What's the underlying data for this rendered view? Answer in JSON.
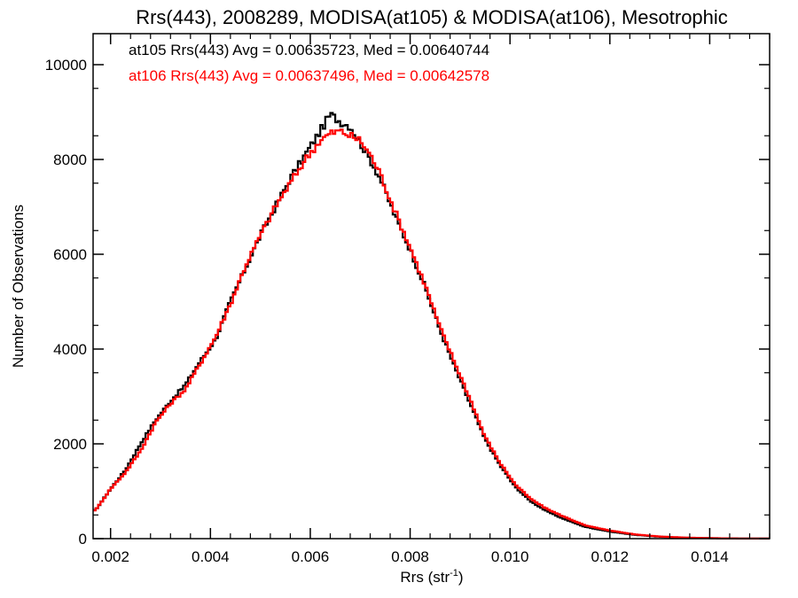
{
  "chart_data": {
    "type": "line",
    "title": "Rrs(443), 2008289, MODISA(at105) & MODISA(at106), Mesotrophic",
    "xlabel": "Rrs (str",
    "xlabel_sup": "-1",
    "xlabel_close": ")",
    "ylabel": "Number of Observations",
    "xlim": [
      0.00165,
      0.0152
    ],
    "ylim": [
      0,
      10000
    ],
    "grid": false,
    "xticks": [
      {
        "value": 0.002,
        "label": "0.002"
      },
      {
        "value": 0.004,
        "label": "0.004"
      },
      {
        "value": 0.006,
        "label": "0.006"
      },
      {
        "value": 0.008,
        "label": "0.008"
      },
      {
        "value": 0.01,
        "label": "0.010"
      },
      {
        "value": 0.012,
        "label": "0.012"
      },
      {
        "value": 0.014,
        "label": "0.014"
      }
    ],
    "yticks": [
      {
        "value": 0,
        "label": "0"
      },
      {
        "value": 2000,
        "label": "2000"
      },
      {
        "value": 4000,
        "label": "4000"
      },
      {
        "value": 6000,
        "label": "6000"
      },
      {
        "value": 8000,
        "label": "8000"
      },
      {
        "value": 10000,
        "label": "10000"
      }
    ],
    "annotations": [
      "at105 Rrs(443) Avg = 0.00635723, Med = 0.00640744",
      "at106 Rrs(443) Avg = 0.00637496, Med = 0.00642578"
    ],
    "x": [
      0.0017,
      0.002,
      0.0023,
      0.0026,
      0.0029,
      0.0032,
      0.0035,
      0.0038,
      0.0041,
      0.0044,
      0.0047,
      0.005,
      0.0053,
      0.0056,
      0.0059,
      0.0062,
      0.0064,
      0.0066,
      0.0068,
      0.007,
      0.0072,
      0.0074,
      0.0077,
      0.008,
      0.0083,
      0.0086,
      0.0089,
      0.0092,
      0.0095,
      0.0098,
      0.0101,
      0.0104,
      0.0107,
      0.011,
      0.0115,
      0.012,
      0.0125,
      0.013,
      0.0135,
      0.014,
      0.0145,
      0.015
    ],
    "series": [
      {
        "color": "#000000",
        "values": [
          600,
          1050,
          1450,
          2000,
          2500,
          2900,
          3250,
          3750,
          4200,
          5000,
          5700,
          6400,
          7000,
          7600,
          8100,
          8600,
          8950,
          8800,
          8700,
          8350,
          8000,
          7600,
          6800,
          6100,
          5300,
          4400,
          3600,
          2850,
          2100,
          1550,
          1100,
          800,
          600,
          450,
          250,
          150,
          80,
          40,
          20,
          10,
          5,
          2
        ]
      },
      {
        "color": "#ff0000",
        "values": [
          600,
          1050,
          1400,
          1850,
          2450,
          2850,
          3150,
          3700,
          4250,
          4950,
          5750,
          6400,
          7000,
          7500,
          8000,
          8400,
          8550,
          8600,
          8500,
          8400,
          8100,
          7700,
          6900,
          6150,
          5350,
          4450,
          3700,
          2950,
          2150,
          1600,
          1150,
          850,
          650,
          500,
          280,
          170,
          90,
          45,
          22,
          11,
          5,
          2
        ]
      }
    ]
  }
}
